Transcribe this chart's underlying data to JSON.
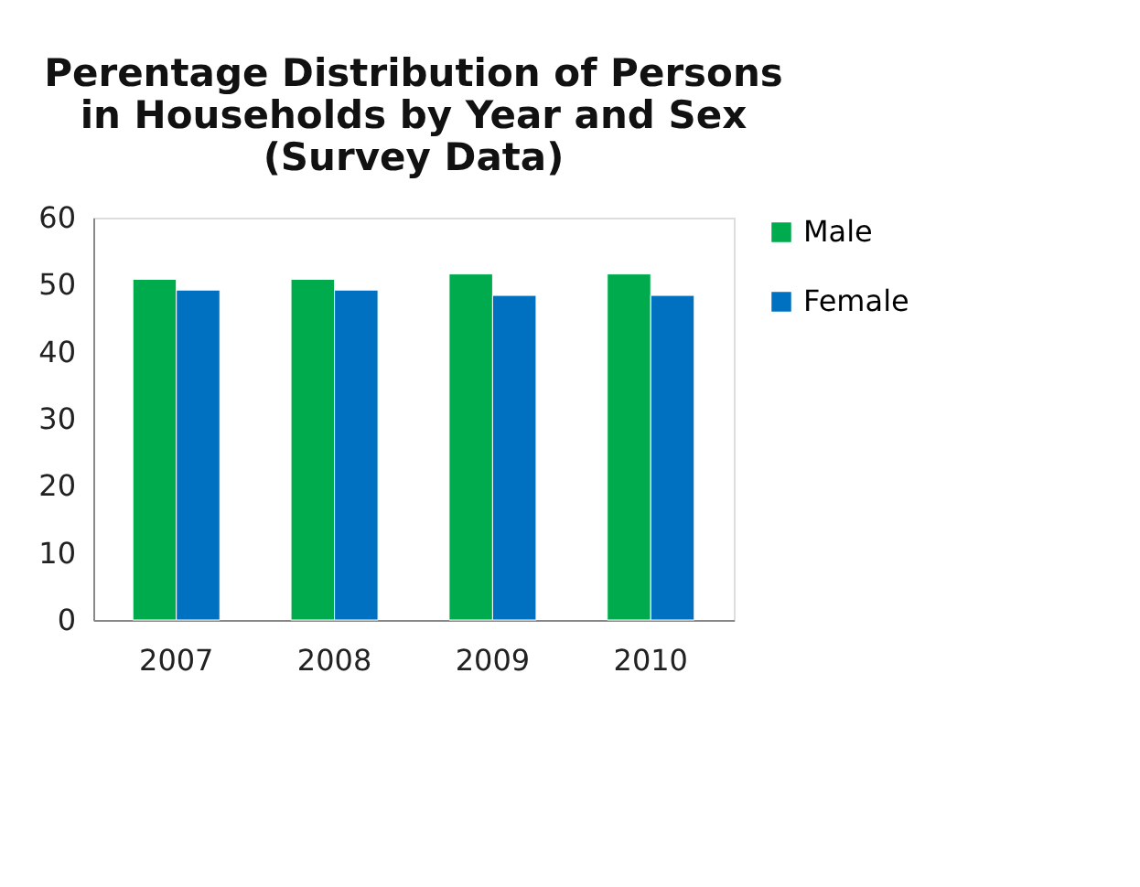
{
  "chart_data": {
    "type": "bar",
    "title": "Perentage Distribution of Persons\nin Households by Year and Sex\n(Survey Data)",
    "categories": [
      "2007",
      "2008",
      "2009",
      "2010"
    ],
    "series": [
      {
        "name": "Male",
        "color": "#00ab4e",
        "values": [
          50.8,
          50.8,
          51.6,
          51.6
        ]
      },
      {
        "name": "Female",
        "color": "#0070c0",
        "values": [
          49.2,
          49.2,
          48.4,
          48.4
        ]
      }
    ],
    "ylim": [
      0,
      60
    ],
    "yticks": [
      0,
      10,
      20,
      30,
      40,
      50,
      60
    ],
    "grid": false,
    "legend": "right"
  }
}
